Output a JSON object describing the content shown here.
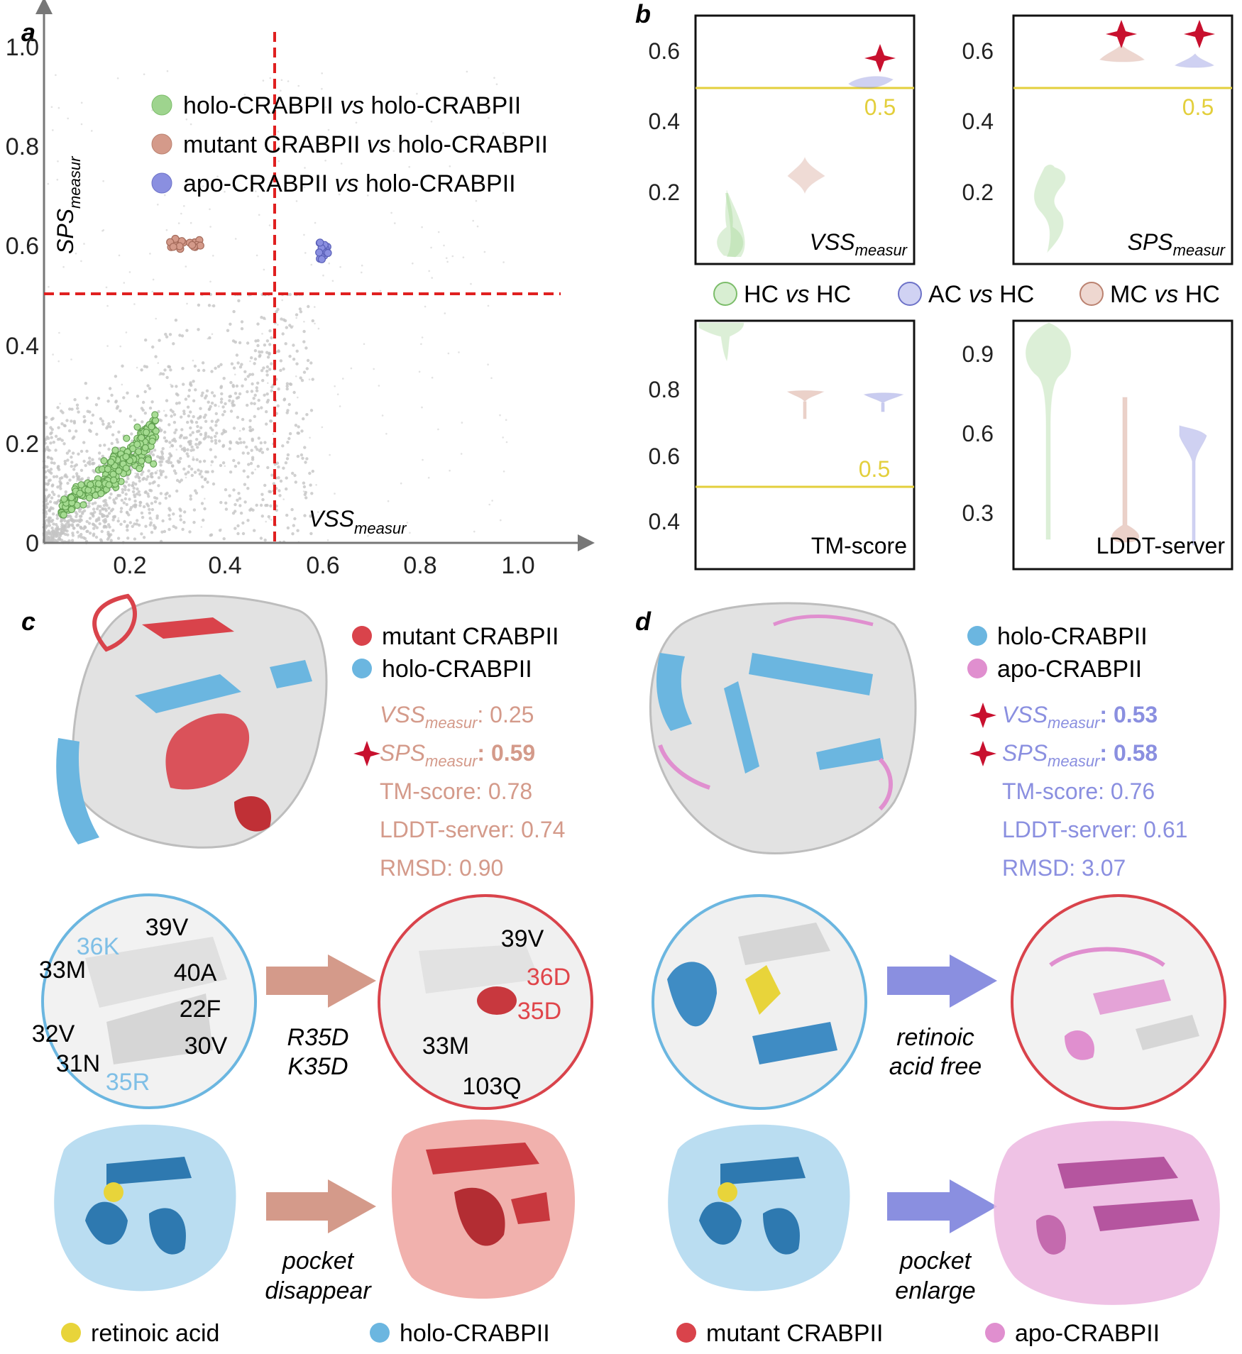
{
  "panel_a": {
    "label": "a",
    "legend": [
      {
        "pre": "holo-CRABPII ",
        "vs": "vs",
        "post": " holo-CRABPII",
        "color": "#9ed48e"
      },
      {
        "pre": "mutant CRABPII ",
        "vs": "vs",
        "post": " holo-CRABPII",
        "color": "#d49a8a"
      },
      {
        "pre": "apo-CRABPII ",
        "vs": "vs",
        "post": " holo-CRABPII",
        "color": "#8a8fe0"
      }
    ],
    "xlabel_main": "VSS",
    "xlabel_sub": "measur",
    "ylabel_main": "SPS",
    "ylabel_sub": "measur",
    "xticks": [
      "0.2",
      "0.4",
      "0.6",
      "0.8",
      "1.0"
    ],
    "yticks": [
      "0",
      "0.2",
      "0.4",
      "0.6",
      "0.8",
      "1.0"
    ],
    "threshold_color": "#e02020"
  },
  "panel_b": {
    "label": "b",
    "legend": [
      {
        "pre": "HC ",
        "vs": "vs",
        "post": " HC",
        "color": "#9ed48e"
      },
      {
        "pre": "AC ",
        "vs": "vs",
        "post": " HC",
        "color": "#8a8fe0"
      },
      {
        "pre": "MC ",
        "vs": "vs",
        "post": " HC",
        "color": "#d49a8a"
      }
    ],
    "boxes": [
      {
        "id": "vss",
        "title_main": "VSS",
        "title_sub": "measur",
        "title_italic": true,
        "ticks": [
          "0.6",
          "0.4",
          "0.2"
        ],
        "threshold_label": "0.5",
        "star": true
      },
      {
        "id": "sps",
        "title_main": "SPS",
        "title_sub": "measur",
        "title_italic": true,
        "ticks": [
          "0.6",
          "0.4",
          "0.2"
        ],
        "threshold_label": "0.5",
        "star": true
      },
      {
        "id": "tm",
        "title_main": "TM-score",
        "title_sub": "",
        "title_italic": false,
        "ticks": [
          "0.8",
          "0.6",
          "0.4"
        ],
        "threshold_label": "0.5",
        "star": false
      },
      {
        "id": "lddt",
        "title_main": "LDDT-server",
        "title_sub": "",
        "title_italic": false,
        "ticks": [
          "0.9",
          "0.6",
          "0.3"
        ],
        "threshold_label": "",
        "star": false
      }
    ],
    "threshold_color": "#e3cf3c",
    "star_color": "#c8102e"
  },
  "panel_c": {
    "label": "c",
    "legend": [
      {
        "text": "mutant CRABPII",
        "color": "#d9434b"
      },
      {
        "text": "holo-CRABPII",
        "color": "#6bb6e0"
      }
    ],
    "metrics": [
      {
        "main": "VSS",
        "sub": "measur",
        "value": ": 0.25",
        "italic": true,
        "bold": false,
        "star": false
      },
      {
        "main": "SPS",
        "sub": "measur",
        "value": ": 0.59",
        "italic": true,
        "bold": true,
        "star": true
      },
      {
        "main": "TM-score",
        "sub": "",
        "value": ": 0.78",
        "italic": false,
        "bold": false,
        "star": false
      },
      {
        "main": "LDDT-server",
        "sub": "",
        "value": ": 0.74",
        "italic": false,
        "bold": false,
        "star": false
      },
      {
        "main": "RMSD",
        "sub": "",
        "value": ": 0.90",
        "italic": false,
        "bold": false,
        "star": false
      }
    ],
    "metric_color": "#d49a8a",
    "mutation_lines": [
      "R35D",
      "K35D"
    ],
    "pocket_lines": [
      "pocket",
      "disappear"
    ],
    "left_residues": [
      {
        "t": "39V",
        "c": "#111"
      },
      {
        "t": "36K",
        "c": "#7fbfe6"
      },
      {
        "t": "33M",
        "c": "#111"
      },
      {
        "t": "40A",
        "c": "#111"
      },
      {
        "t": "22F",
        "c": "#111"
      },
      {
        "t": "32V",
        "c": "#111"
      },
      {
        "t": "30V",
        "c": "#111"
      },
      {
        "t": "31N",
        "c": "#111"
      },
      {
        "t": "35R",
        "c": "#7fbfe6"
      }
    ],
    "right_residues": [
      {
        "t": "39V",
        "c": "#111"
      },
      {
        "t": "36D",
        "c": "#e0454a"
      },
      {
        "t": "35D",
        "c": "#e0454a"
      },
      {
        "t": "33M",
        "c": "#111"
      },
      {
        "t": "103Q",
        "c": "#111"
      }
    ]
  },
  "panel_d": {
    "label": "d",
    "legend": [
      {
        "text": "holo-CRABPII",
        "color": "#6bb6e0"
      },
      {
        "text": "apo-CRABPII",
        "color": "#e08fcf"
      }
    ],
    "metrics": [
      {
        "main": "VSS",
        "sub": "measur",
        "value": ": 0.53",
        "italic": true,
        "bold": true,
        "star": true
      },
      {
        "main": "SPS",
        "sub": "measur",
        "value": ": 0.58",
        "italic": true,
        "bold": true,
        "star": true
      },
      {
        "main": "TM-score",
        "sub": "",
        "value": ": 0.76",
        "italic": false,
        "bold": false,
        "star": false
      },
      {
        "main": "LDDT-server",
        "sub": "",
        "value": ": 0.61",
        "italic": false,
        "bold": false,
        "star": false
      },
      {
        "main": "RMSD",
        "sub": "",
        "value": ": 3.07",
        "italic": false,
        "bold": false,
        "star": false
      }
    ],
    "metric_color": "#8a8fe0",
    "transition_lines": [
      "retinoic",
      "acid free"
    ],
    "pocket_lines": [
      "pocket",
      "enlarge"
    ]
  },
  "bottom_legend": [
    {
      "text": "retinoic acid",
      "color": "#e8d43a"
    },
    {
      "text": "holo-CRABPII",
      "color": "#6bb6e0"
    },
    {
      "text": "mutant CRABPII",
      "color": "#d9434b"
    },
    {
      "text": "apo-CRABPII",
      "color": "#e08fcf"
    }
  ]
}
